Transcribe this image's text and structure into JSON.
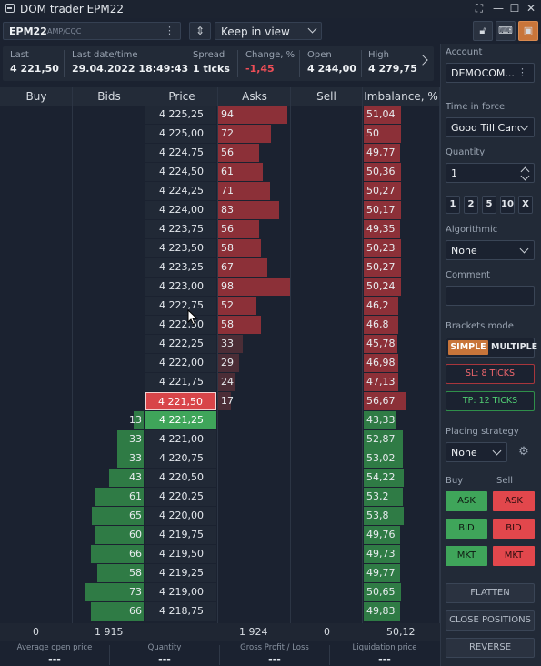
{
  "window": {
    "title": "DOM trader EPM22"
  },
  "toolbar": {
    "symbol": "EPM22",
    "exchange": "AMP/CQC",
    "view_mode": "Keep in view"
  },
  "stats": [
    {
      "label": "Last",
      "value": "4 221,50"
    },
    {
      "label": "Last date/time",
      "value": "29.04.2022 18:49:43"
    },
    {
      "label": "Spread",
      "value": "1 ticks"
    },
    {
      "label": "Change, %",
      "value": "-1,45"
    },
    {
      "label": "Open",
      "value": "4 244,00"
    },
    {
      "label": "High",
      "value": "4 279,75"
    }
  ],
  "columns": [
    "Buy",
    "Bids",
    "Price",
    "Asks",
    "Sell",
    "Imbalance, %"
  ],
  "rows": [
    {
      "price": "4 225,25",
      "bid": "",
      "ask": "94",
      "imb": "51,04"
    },
    {
      "price": "4 225,00",
      "bid": "",
      "ask": "72",
      "imb": "50"
    },
    {
      "price": "4 224,75",
      "bid": "",
      "ask": "56",
      "imb": "49,77"
    },
    {
      "price": "4 224,50",
      "bid": "",
      "ask": "61",
      "imb": "50,36"
    },
    {
      "price": "4 224,25",
      "bid": "",
      "ask": "71",
      "imb": "50,27"
    },
    {
      "price": "4 224,00",
      "bid": "",
      "ask": "83",
      "imb": "50,17"
    },
    {
      "price": "4 223,75",
      "bid": "",
      "ask": "56",
      "imb": "49,35"
    },
    {
      "price": "4 223,50",
      "bid": "",
      "ask": "58",
      "imb": "50,23"
    },
    {
      "price": "4 223,25",
      "bid": "",
      "ask": "67",
      "imb": "50,27"
    },
    {
      "price": "4 223,00",
      "bid": "",
      "ask": "98",
      "imb": "50,24"
    },
    {
      "price": "4 222,75",
      "bid": "",
      "ask": "52",
      "imb": "46,2"
    },
    {
      "price": "4 222,50",
      "bid": "",
      "ask": "58",
      "imb": "46,8"
    },
    {
      "price": "4 222,25",
      "bid": "",
      "ask": "33",
      "imb": "45,78"
    },
    {
      "price": "4 222,00",
      "bid": "",
      "ask": "29",
      "imb": "46,98"
    },
    {
      "price": "4 221,75",
      "bid": "",
      "ask": "24",
      "imb": "47,13"
    },
    {
      "price": "4 221,50",
      "bid": "",
      "ask": "17",
      "imb": "56,67"
    },
    {
      "price": "4 221,25",
      "bid": "13",
      "ask": "",
      "imb": "43,33"
    },
    {
      "price": "4 221,00",
      "bid": "33",
      "ask": "",
      "imb": "52,87"
    },
    {
      "price": "4 220,75",
      "bid": "33",
      "ask": "",
      "imb": "53,02"
    },
    {
      "price": "4 220,50",
      "bid": "43",
      "ask": "",
      "imb": "54,22"
    },
    {
      "price": "4 220,25",
      "bid": "61",
      "ask": "",
      "imb": "53,2"
    },
    {
      "price": "4 220,00",
      "bid": "65",
      "ask": "",
      "imb": "53,8"
    },
    {
      "price": "4 219,75",
      "bid": "60",
      "ask": "",
      "imb": "49,76"
    },
    {
      "price": "4 219,50",
      "bid": "66",
      "ask": "",
      "imb": "49,73"
    },
    {
      "price": "4 219,25",
      "bid": "58",
      "ask": "",
      "imb": "49,77"
    },
    {
      "price": "4 219,00",
      "bid": "73",
      "ask": "",
      "imb": "50,65"
    },
    {
      "price": "4 218,75",
      "bid": "66",
      "ask": "",
      "imb": "49,83"
    }
  ],
  "totals": {
    "buy": "0",
    "bids": "1 915",
    "asks": "1 924",
    "sell": "0",
    "imbalance": "50,12"
  },
  "footer": [
    {
      "label": "Average open price",
      "value": "---"
    },
    {
      "label": "Quantity",
      "value": "---"
    },
    {
      "label": "Gross Profit / Loss",
      "value": "---"
    },
    {
      "label": "Liquidation price",
      "value": "---"
    }
  ],
  "panel": {
    "account_label": "Account",
    "account_value": "DEMOCOM...",
    "tif_label": "Time in force",
    "tif_value": "Good Till Cancel",
    "quantity_label": "Quantity",
    "quantity_value": "1",
    "quick_qty": [
      "1",
      "2",
      "5",
      "10",
      "X"
    ],
    "algo_label": "Algorithmic",
    "algo_value": "None",
    "comment_label": "Comment",
    "brackets_label": "Brackets mode",
    "mode_simple": "SIMPLE",
    "mode_multiple": "MULTIPLE",
    "sl": "SL: 8 TICKS",
    "tp": "TP: 12 TICKS",
    "placing_label": "Placing strategy",
    "placing_value": "None",
    "buy_label": "Buy",
    "sell_label": "Sell",
    "order_buttons": [
      "ASK",
      "BID",
      "MKT"
    ],
    "flatten": "FLATTEN",
    "close_positions": "CLOSE POSITIONS",
    "reverse": "REVERSE"
  },
  "colors": {
    "bid": "#3fa55a",
    "ask": "#d84549",
    "accent": "#c8753a",
    "background": "#1b2230"
  },
  "icons": [
    "window-icon",
    "fullscreen-icon",
    "minimize-icon",
    "maximize-icon",
    "close-icon",
    "kebab-icon",
    "center-icon",
    "lock-icon",
    "keyboard-icon",
    "panel-icon",
    "chevron-right-icon",
    "gear-icon"
  ]
}
